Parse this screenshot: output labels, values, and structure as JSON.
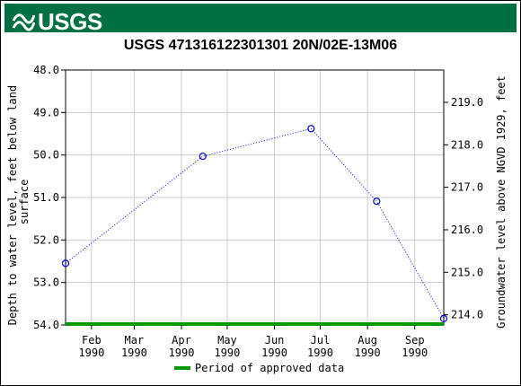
{
  "header": {
    "logo_text": "USGS"
  },
  "chart_data": {
    "type": "scatter",
    "title": "USGS 471316122301301 20N/02E-13M06",
    "ylabel_left": "Depth to water level, feet below land surface",
    "ylabel_right": "Groundwater level above NGVD 1929, feet",
    "ylim_left": [
      48.0,
      54.0
    ],
    "ylim_right": [
      213.76,
      219.76
    ],
    "left_ticks": [
      48.0,
      49.0,
      50.0,
      51.0,
      52.0,
      53.0,
      54.0
    ],
    "left_tick_labels": [
      "48.0",
      "49.0",
      "50.0",
      "51.0",
      "52.0",
      "53.0",
      "54.0"
    ],
    "right_ticks": [
      219.0,
      218.0,
      217.0,
      216.0,
      215.0,
      214.0
    ],
    "right_tick_labels": [
      "219.0",
      "218.0",
      "217.0",
      "216.0",
      "215.0",
      "214.0"
    ],
    "xlim": [
      "1990-01-15",
      "1990-09-20"
    ],
    "x_ticks": [
      "1990-02-01",
      "1990-03-01",
      "1990-04-01",
      "1990-05-01",
      "1990-06-01",
      "1990-07-01",
      "1990-08-01",
      "1990-09-01"
    ],
    "x_tick_labels": [
      [
        "Feb",
        "1990"
      ],
      [
        "Mar",
        "1990"
      ],
      [
        "Apr",
        "1990"
      ],
      [
        "May",
        "1990"
      ],
      [
        "Jun",
        "1990"
      ],
      [
        "Jul",
        "1990"
      ],
      [
        "Aug",
        "1990"
      ],
      [
        "Sep",
        "1990"
      ]
    ],
    "series": [
      {
        "x": [
          "1990-01-15",
          "1990-04-15",
          "1990-06-25",
          "1990-08-07",
          "1990-09-20"
        ],
        "y": [
          52.55,
          50.03,
          49.38,
          51.09,
          53.85
        ],
        "color": "#0000CC",
        "line_style": "dotted",
        "marker": "open-circle"
      }
    ],
    "approved_period": {
      "start": "1990-01-15",
      "end": "1990-09-20",
      "color": "#009900"
    },
    "legend": {
      "label": "Period of approved data",
      "placement": "bottom-center"
    },
    "grid": true
  }
}
